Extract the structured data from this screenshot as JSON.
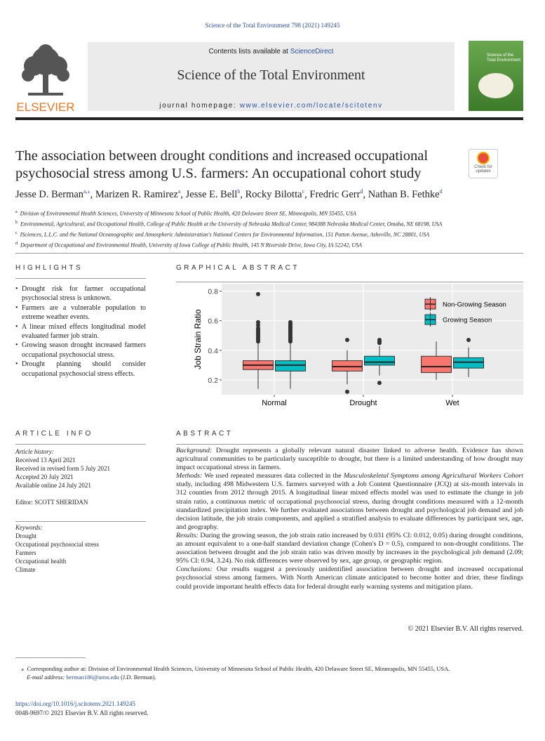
{
  "header": {
    "journal_ref": "Science of the Total Environment 798 (2021) 149245",
    "contents_prefix": "Contents lists available at",
    "contents_link": "ScienceDirect",
    "journal_title": "Science of the Total Environment",
    "homepage_prefix": "journal homepage:",
    "homepage_link": "www.elsevier.com/locate/scitotenv",
    "publisher": "ELSEVIER",
    "cover_title": "Science of the Total Environment"
  },
  "article": {
    "title": "The association between drought conditions and increased occupational psychosocial stress among U.S. farmers: An occupational cohort study",
    "check_updates": "Check for updates",
    "authors": [
      {
        "name": "Jesse D. Berman",
        "sup": "a,⁎"
      },
      {
        "name": "Marizen R. Ramirez",
        "sup": "a"
      },
      {
        "name": "Jesse E. Bell",
        "sup": "b"
      },
      {
        "name": "Rocky Bilotta",
        "sup": "c"
      },
      {
        "name": "Fredric Gerr",
        "sup": "d"
      },
      {
        "name": "Nathan B. Fethke",
        "sup": "d"
      }
    ],
    "affiliations": [
      {
        "sup": "a",
        "text": "Division of Environmental Health Sciences, University of Minnesota School of Public Health, 420 Delaware Street SE, Minneapolis, MN 55455, USA"
      },
      {
        "sup": "b",
        "text": "Environmental, Agricultural, and Occupational Health, College of Public Health at the University of Nebraska Medical Center, 984388 Nebraska Medical Center, Omaha, NE 68198, USA"
      },
      {
        "sup": "c",
        "text": "ISciences, L.L.C. and the National Oceanographic and Atmospheric Administration's National Centers for Environmental Information, 151 Patton Avenue, Asheville, NC 28801, USA"
      },
      {
        "sup": "d",
        "text": "Department of Occupational and Environmental Health, University of Iowa College of Public Health, 145 N Riverside Drive, Iowa City, IA 52242, USA"
      }
    ]
  },
  "highlights": {
    "heading": "HIGHLIGHTS",
    "items": [
      "Drought risk for farmer occupational psychosocial stress is unknown.",
      "Farmers are a vulnerable population to extreme weather events.",
      "A linear mixed effects longitudinal model evaluated farmer job strain.",
      "Growing season drought increased farmers occupational psychosocial stress.",
      "Drought planning should consider occupational psychosocial stress effects."
    ]
  },
  "graphical_abstract": {
    "heading": "GRAPHICAL ABSTRACT"
  },
  "chart_data": {
    "type": "box",
    "ylabel": "Job Strain Ratio",
    "categories": [
      "Normal",
      "Drought",
      "Wet"
    ],
    "ylim": [
      0.1,
      0.85
    ],
    "yticks": [
      0.2,
      0.4,
      0.6,
      0.8
    ],
    "grid": true,
    "legend": "top-right",
    "series": [
      {
        "name": "Non-Growing Season",
        "color": "#F8766D",
        "min": [
          0.14,
          0.17,
          0.2
        ],
        "q1": [
          0.27,
          0.26,
          0.25
        ],
        "median": [
          0.3,
          0.29,
          0.29
        ],
        "q3": [
          0.33,
          0.33,
          0.36
        ],
        "max": [
          0.45,
          0.4,
          0.46
        ],
        "outliers": [
          [
            0.46,
            0.47,
            0.48,
            0.49,
            0.5,
            0.51,
            0.52,
            0.53,
            0.54,
            0.55,
            0.57,
            0.59,
            0.78
          ],
          [
            0.47,
            0.12
          ],
          []
        ]
      },
      {
        "name": "Growing Season",
        "color": "#00BFC4",
        "min": [
          0.14,
          0.23,
          0.22
        ],
        "q1": [
          0.26,
          0.3,
          0.28
        ],
        "median": [
          0.3,
          0.32,
          0.32
        ],
        "q3": [
          0.33,
          0.36,
          0.35
        ],
        "max": [
          0.45,
          0.43,
          0.42
        ],
        "outliers": [
          [
            0.46,
            0.47,
            0.48,
            0.49,
            0.5,
            0.51,
            0.52,
            0.53,
            0.54,
            0.55,
            0.56,
            0.57,
            0.58,
            0.59
          ],
          [
            0.45,
            0.46,
            0.47,
            0.18
          ],
          [
            0.47
          ]
        ]
      }
    ]
  },
  "article_info": {
    "heading": "ARTICLE INFO",
    "history_label": "Article history:",
    "history": [
      "Received 13 April 2021",
      "Received in revised form 5 July 2021",
      "Accepted 20 July 2021",
      "Available online 24 July 2021"
    ],
    "editor": "Editor: SCOTT SHERIDAN",
    "keywords_label": "Keywords:",
    "keywords": [
      "Drought",
      "Occupational psychosocial stress",
      "Farmers",
      "Occupational health",
      "Climate"
    ]
  },
  "abstract": {
    "heading": "ABSTRACT",
    "sections": [
      {
        "label": "Background:",
        "parts": [
          {
            "text": "Drought represents a globally relevant natural disaster linked to adverse health. Evidence has shown agricultural communities to be particularly susceptible to drought, but there is a limited understanding of how drought may impact occupational stress in farmers."
          }
        ]
      },
      {
        "label": "Methods:",
        "parts": [
          {
            "text": "We used repeated measures data collected in the "
          },
          {
            "text": "Musculoskeletal Symptoms among Agricultural Workers Cohort",
            "italic": true
          },
          {
            "text": " study, including 498 Midwestern U.S. farmers surveyed with a Job Content Questionnaire (JCQ) at six-month intervals in 312 counties from 2012 through 2015. A longitudinal linear mixed effects model was used to estimate the change in job strain ratio, a continuous metric of occupational psychosocial stress, during drought conditions measured with a 12-month standardized precipitation index. We further evaluated associations between drought and psychological job demand and job decision latitude, the job strain components, and applied a stratified analysis to evaluate differences by participant sex, age, and geography."
          }
        ]
      },
      {
        "label": "Results:",
        "parts": [
          {
            "text": "During the growing season, the job strain ratio increased by 0.031 (95% CI: 0.012, 0.05) during drought conditions, an amount equivalent to a one-half standard deviation change (Cohen's D = 0.5), compared to non-drought conditions. The association between drought and the job strain ratio was driven mostly by increases in the psychological job demand (2.09; 95% CI: 0.94, 3.24). No risk differences were observed by sex, age group, or geographic region."
          }
        ]
      },
      {
        "label": "Conclusions:",
        "parts": [
          {
            "text": "Our results suggest a previously unidentified association between drought and increased occupational psychosocial stress among farmers. With North American climate anticipated to become hotter and drier, these findings could provide important health effects data for federal drought early warning systems and mitigation plans."
          }
        ]
      }
    ],
    "copyright": "© 2021 Elsevier B.V. All rights reserved."
  },
  "footer": {
    "footnote_mark": "⁎",
    "footnote": "Corresponding author at: Division of Environmental Health Sciences, University of Minnesota School of Public Health, 420 Delaware Street SE, Minneapolis, MN 55455, USA.",
    "email_label": "E-mail address:",
    "email": "berman186@umn.edu",
    "email_name": "(J.D. Berman).",
    "doi": "https://doi.org/10.1016/j.scitotenv.2021.149245",
    "issn": "0048-9697/© 2021 Elsevier B.V. All rights reserved."
  }
}
